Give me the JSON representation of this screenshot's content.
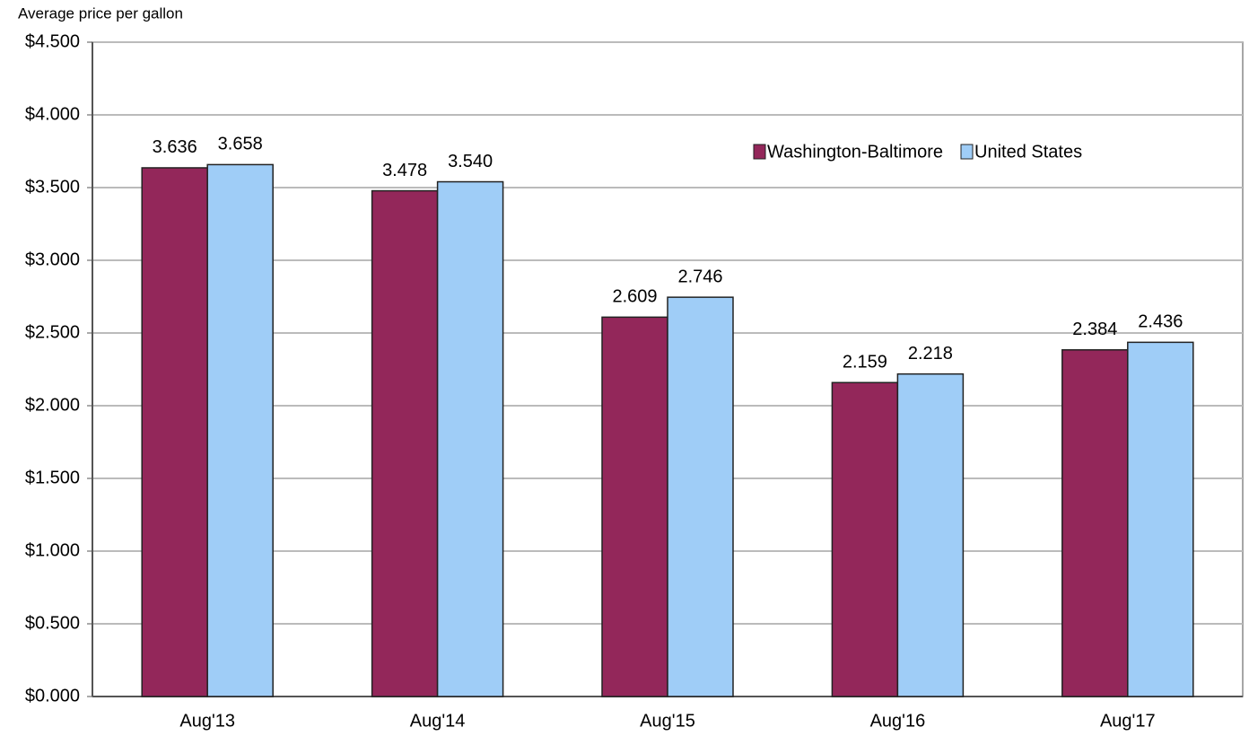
{
  "chart_data": {
    "type": "bar",
    "y_axis_label": "Average price per gallon",
    "categories": [
      "Aug'13",
      "Aug'14",
      "Aug'15",
      "Aug'16",
      "Aug'17"
    ],
    "series": [
      {
        "name": "Washington-Baltimore",
        "color": "#93275a",
        "values": [
          3.636,
          3.478,
          2.609,
          2.159,
          2.384
        ],
        "value_labels": [
          "3.636",
          "3.478",
          "2.609",
          "2.159",
          "2.384"
        ]
      },
      {
        "name": "United States",
        "color": "#9fcdf7",
        "values": [
          3.658,
          3.54,
          2.746,
          2.218,
          2.436
        ],
        "value_labels": [
          "3.658",
          "3.540",
          "2.746",
          "2.218",
          "2.436"
        ]
      }
    ],
    "ylim": [
      0,
      4.5
    ],
    "yticks": [
      {
        "value": 0,
        "label": "$0.000"
      },
      {
        "value": 0.5,
        "label": "$0.500"
      },
      {
        "value": 1,
        "label": "$1.000"
      },
      {
        "value": 1.5,
        "label": "$1.500"
      },
      {
        "value": 2,
        "label": "$2.000"
      },
      {
        "value": 2.5,
        "label": "$2.500"
      },
      {
        "value": 3,
        "label": "$3.000"
      },
      {
        "value": 3.5,
        "label": "$3.500"
      },
      {
        "value": 4,
        "label": "$4.000"
      },
      {
        "value": 4.5,
        "label": "$4.500"
      }
    ],
    "grid": true,
    "legend": "upper right"
  }
}
